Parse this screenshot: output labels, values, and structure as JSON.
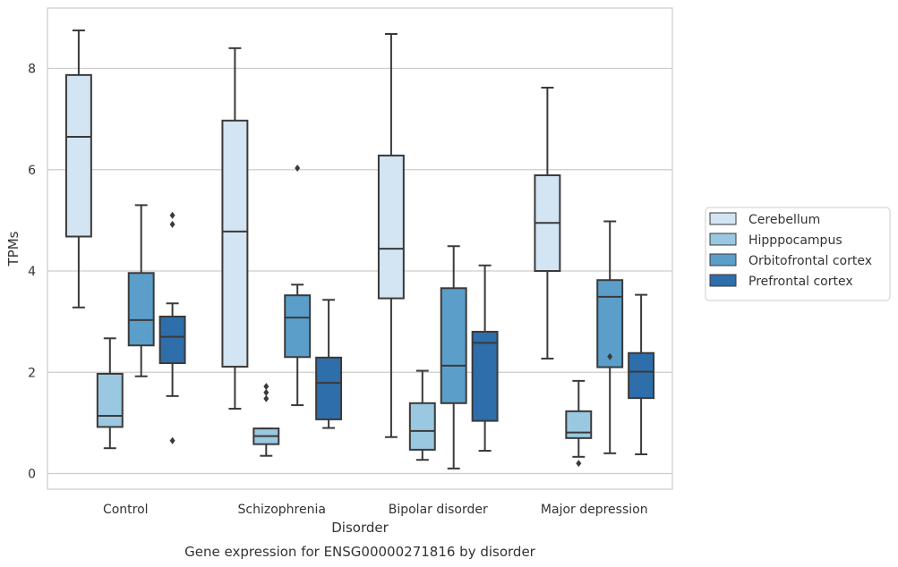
{
  "chart_data": {
    "type": "box",
    "caption": "Gene expression for ENSG00000271816 by disorder",
    "xlabel": "Disorder",
    "ylabel": "TPMs",
    "ylim": [
      -0.3,
      9.2
    ],
    "yticks": [
      0,
      2,
      4,
      6,
      8
    ],
    "grid": "horizontal",
    "legend_position": "right",
    "categories": [
      "Control",
      "Schizophrenia",
      "Bipolar disorder",
      "Major depression"
    ],
    "series": [
      {
        "name": "Cerebellum",
        "color": "#d3e4f3",
        "boxes": [
          {
            "whisker_low": 3.28,
            "q1": 4.68,
            "median": 6.65,
            "q3": 7.87,
            "whisker_high": 8.75,
            "outliers": []
          },
          {
            "whisker_low": 1.28,
            "q1": 2.11,
            "median": 4.78,
            "q3": 6.97,
            "whisker_high": 8.4,
            "outliers": []
          },
          {
            "whisker_low": 0.72,
            "q1": 3.46,
            "median": 4.44,
            "q3": 6.28,
            "whisker_high": 8.68,
            "outliers": []
          },
          {
            "whisker_low": 2.27,
            "q1": 4.0,
            "median": 4.95,
            "q3": 5.89,
            "whisker_high": 7.62,
            "outliers": []
          }
        ]
      },
      {
        "name": "Hipppocampus",
        "color": "#9ac8e0",
        "boxes": [
          {
            "whisker_low": 0.5,
            "q1": 0.92,
            "median": 1.14,
            "q3": 1.97,
            "whisker_high": 2.67,
            "outliers": []
          },
          {
            "whisker_low": 0.35,
            "q1": 0.58,
            "median": 0.74,
            "q3": 0.89,
            "whisker_high": 0.89,
            "outliers": [
              1.72,
              1.6,
              1.48
            ]
          },
          {
            "whisker_low": 0.27,
            "q1": 0.47,
            "median": 0.84,
            "q3": 1.39,
            "whisker_high": 2.03,
            "outliers": []
          },
          {
            "whisker_low": 0.33,
            "q1": 0.7,
            "median": 0.81,
            "q3": 1.23,
            "whisker_high": 1.83,
            "outliers": [
              0.2
            ]
          }
        ]
      },
      {
        "name": "Orbitofrontal cortex",
        "color": "#5b9ec9",
        "boxes": [
          {
            "whisker_low": 1.92,
            "q1": 2.53,
            "median": 3.03,
            "q3": 3.96,
            "whisker_high": 5.3,
            "outliers": []
          },
          {
            "whisker_low": 1.35,
            "q1": 2.3,
            "median": 3.08,
            "q3": 3.52,
            "whisker_high": 3.73,
            "outliers": [
              6.03
            ]
          },
          {
            "whisker_low": 0.1,
            "q1": 1.39,
            "median": 2.13,
            "q3": 3.66,
            "whisker_high": 4.49,
            "outliers": []
          },
          {
            "whisker_low": 0.4,
            "q1": 2.1,
            "median": 3.49,
            "q3": 3.82,
            "whisker_high": 4.98,
            "outliers": [
              2.31
            ]
          }
        ]
      },
      {
        "name": "Prefrontal cortex",
        "color": "#2d6eab",
        "boxes": [
          {
            "whisker_low": 1.53,
            "q1": 2.18,
            "median": 2.7,
            "q3": 3.1,
            "whisker_high": 3.36,
            "outliers": [
              5.1,
              4.92,
              0.65
            ]
          },
          {
            "whisker_low": 0.9,
            "q1": 1.07,
            "median": 1.79,
            "q3": 2.29,
            "whisker_high": 3.43,
            "outliers": []
          },
          {
            "whisker_low": 0.45,
            "q1": 1.04,
            "median": 2.58,
            "q3": 2.8,
            "whisker_high": 4.11,
            "outliers": []
          },
          {
            "whisker_low": 0.38,
            "q1": 1.49,
            "median": 2.01,
            "q3": 2.38,
            "whisker_high": 3.53,
            "outliers": []
          }
        ]
      }
    ]
  }
}
